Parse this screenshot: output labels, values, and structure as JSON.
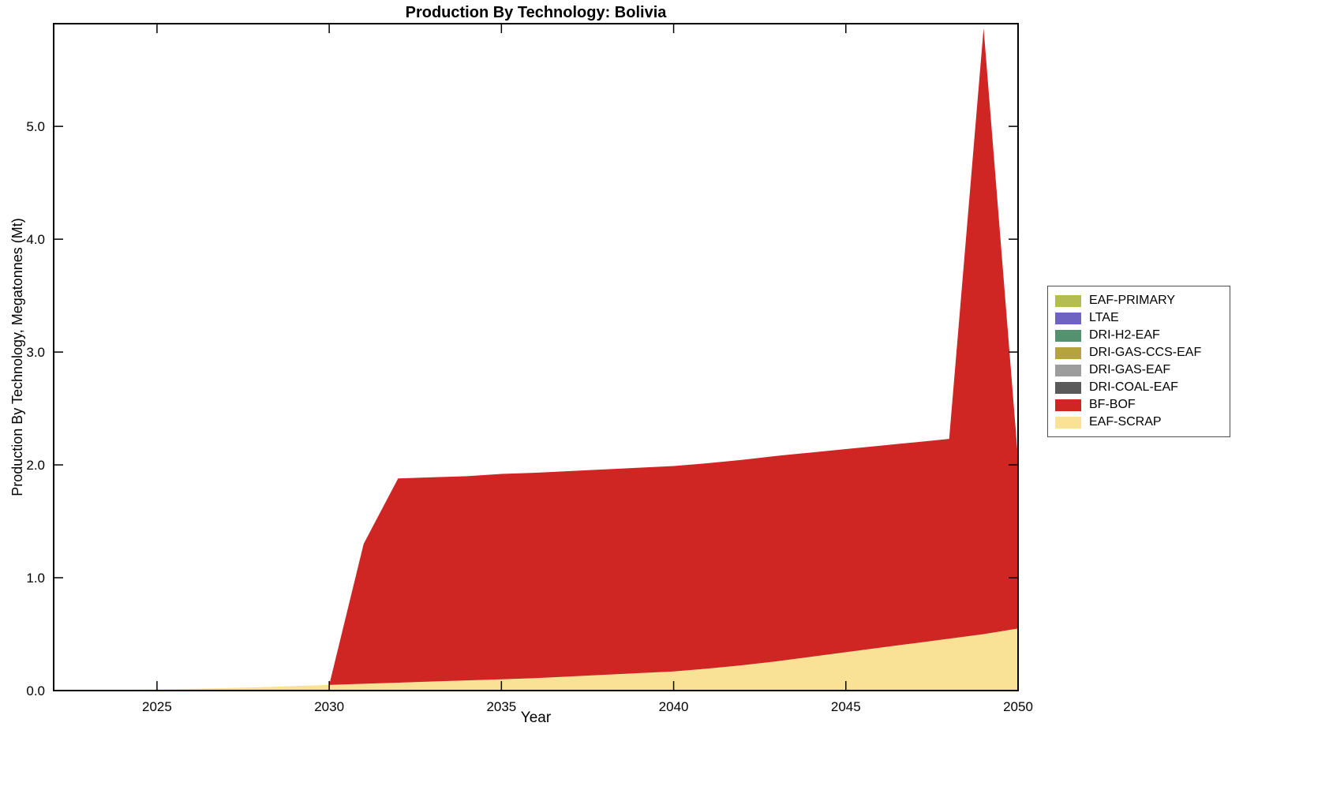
{
  "chart_data": {
    "type": "area",
    "title": "Production By Technology: Bolivia",
    "xlabel": "Year",
    "ylabel": "Production By Technology, Megatonnes (Mt)",
    "xlim": [
      2022,
      2050
    ],
    "ylim": [
      0,
      5.91
    ],
    "grid": false,
    "legend_position": "right-outside",
    "x": [
      2022,
      2023,
      2024,
      2025,
      2026,
      2027,
      2028,
      2029,
      2030,
      2031,
      2032,
      2033,
      2034,
      2035,
      2036,
      2037,
      2038,
      2039,
      2040,
      2041,
      2042,
      2043,
      2044,
      2045,
      2046,
      2047,
      2048,
      2049,
      2050
    ],
    "series": [
      {
        "name": "EAF-PRIMARY",
        "color": "#b3bd51",
        "values": [
          0,
          0,
          0,
          0,
          0,
          0,
          0,
          0,
          0,
          0,
          0,
          0,
          0,
          0,
          0,
          0,
          0,
          0,
          0,
          0,
          0,
          0,
          0,
          0,
          0,
          0,
          0,
          0,
          0
        ]
      },
      {
        "name": "LTAE",
        "color": "#6f63c2",
        "values": [
          0,
          0,
          0,
          0,
          0,
          0,
          0,
          0,
          0,
          0,
          0,
          0,
          0,
          0,
          0,
          0,
          0,
          0,
          0,
          0,
          0,
          0,
          0,
          0,
          0,
          0,
          0,
          0,
          0
        ]
      },
      {
        "name": "DRI-H2-EAF",
        "color": "#53916f",
        "values": [
          0,
          0,
          0,
          0,
          0,
          0,
          0,
          0,
          0,
          0,
          0,
          0,
          0,
          0,
          0,
          0,
          0,
          0,
          0,
          0,
          0,
          0,
          0,
          0,
          0,
          0,
          0,
          0,
          0
        ]
      },
      {
        "name": "DRI-GAS-CCS-EAF",
        "color": "#b5a33d",
        "values": [
          0,
          0,
          0,
          0,
          0,
          0,
          0,
          0,
          0,
          0,
          0,
          0,
          0,
          0,
          0,
          0,
          0,
          0,
          0,
          0,
          0,
          0,
          0,
          0,
          0,
          0,
          0,
          0,
          0
        ]
      },
      {
        "name": "DRI-GAS-EAF",
        "color": "#9d9d9d",
        "values": [
          0,
          0,
          0,
          0,
          0,
          0,
          0,
          0,
          0,
          0,
          0,
          0,
          0,
          0,
          0,
          0,
          0,
          0,
          0,
          0,
          0,
          0,
          0,
          0,
          0,
          0,
          0,
          0,
          0
        ]
      },
      {
        "name": "DRI-COAL-EAF",
        "color": "#5a5a5a",
        "values": [
          0,
          0,
          0,
          0,
          0,
          0,
          0,
          0,
          0,
          0,
          0,
          0,
          0,
          0,
          0,
          0,
          0,
          0,
          0,
          0,
          0,
          0,
          0,
          0,
          0,
          0,
          0,
          0,
          0
        ]
      },
      {
        "name": "BF-BOF",
        "color": "#d02623",
        "values": [
          0,
          0,
          0,
          0,
          0,
          0,
          0,
          0,
          0,
          1.24,
          1.81,
          1.81,
          1.81,
          1.82,
          1.82,
          1.82,
          1.82,
          1.82,
          1.82,
          1.82,
          1.82,
          1.82,
          1.81,
          1.8,
          1.79,
          1.78,
          1.77,
          5.37,
          1.5
        ]
      },
      {
        "name": "EAF-SCRAP",
        "color": "#f9e295",
        "values": [
          0,
          0.003,
          0.006,
          0.01,
          0.016,
          0.022,
          0.03,
          0.04,
          0.05,
          0.06,
          0.07,
          0.08,
          0.09,
          0.1,
          0.11,
          0.125,
          0.14,
          0.155,
          0.17,
          0.195,
          0.225,
          0.26,
          0.3,
          0.34,
          0.38,
          0.42,
          0.46,
          0.5,
          0.55
        ]
      }
    ],
    "stack_order_bottom_to_top": [
      "EAF-SCRAP",
      "BF-BOF",
      "DRI-COAL-EAF",
      "DRI-GAS-EAF",
      "DRI-GAS-CCS-EAF",
      "DRI-H2-EAF",
      "LTAE",
      "EAF-PRIMARY"
    ],
    "xticks": {
      "values": [
        2025,
        2030,
        2035,
        2040,
        2045,
        2050
      ],
      "labels": [
        "2025",
        "2030",
        "2035",
        "2040",
        "2045",
        "2050"
      ]
    },
    "yticks": {
      "values": [
        0,
        1,
        2,
        3,
        4,
        5
      ],
      "labels": [
        "0.0",
        "1.0",
        "2.0",
        "3.0",
        "4.0",
        "5.0"
      ]
    }
  }
}
